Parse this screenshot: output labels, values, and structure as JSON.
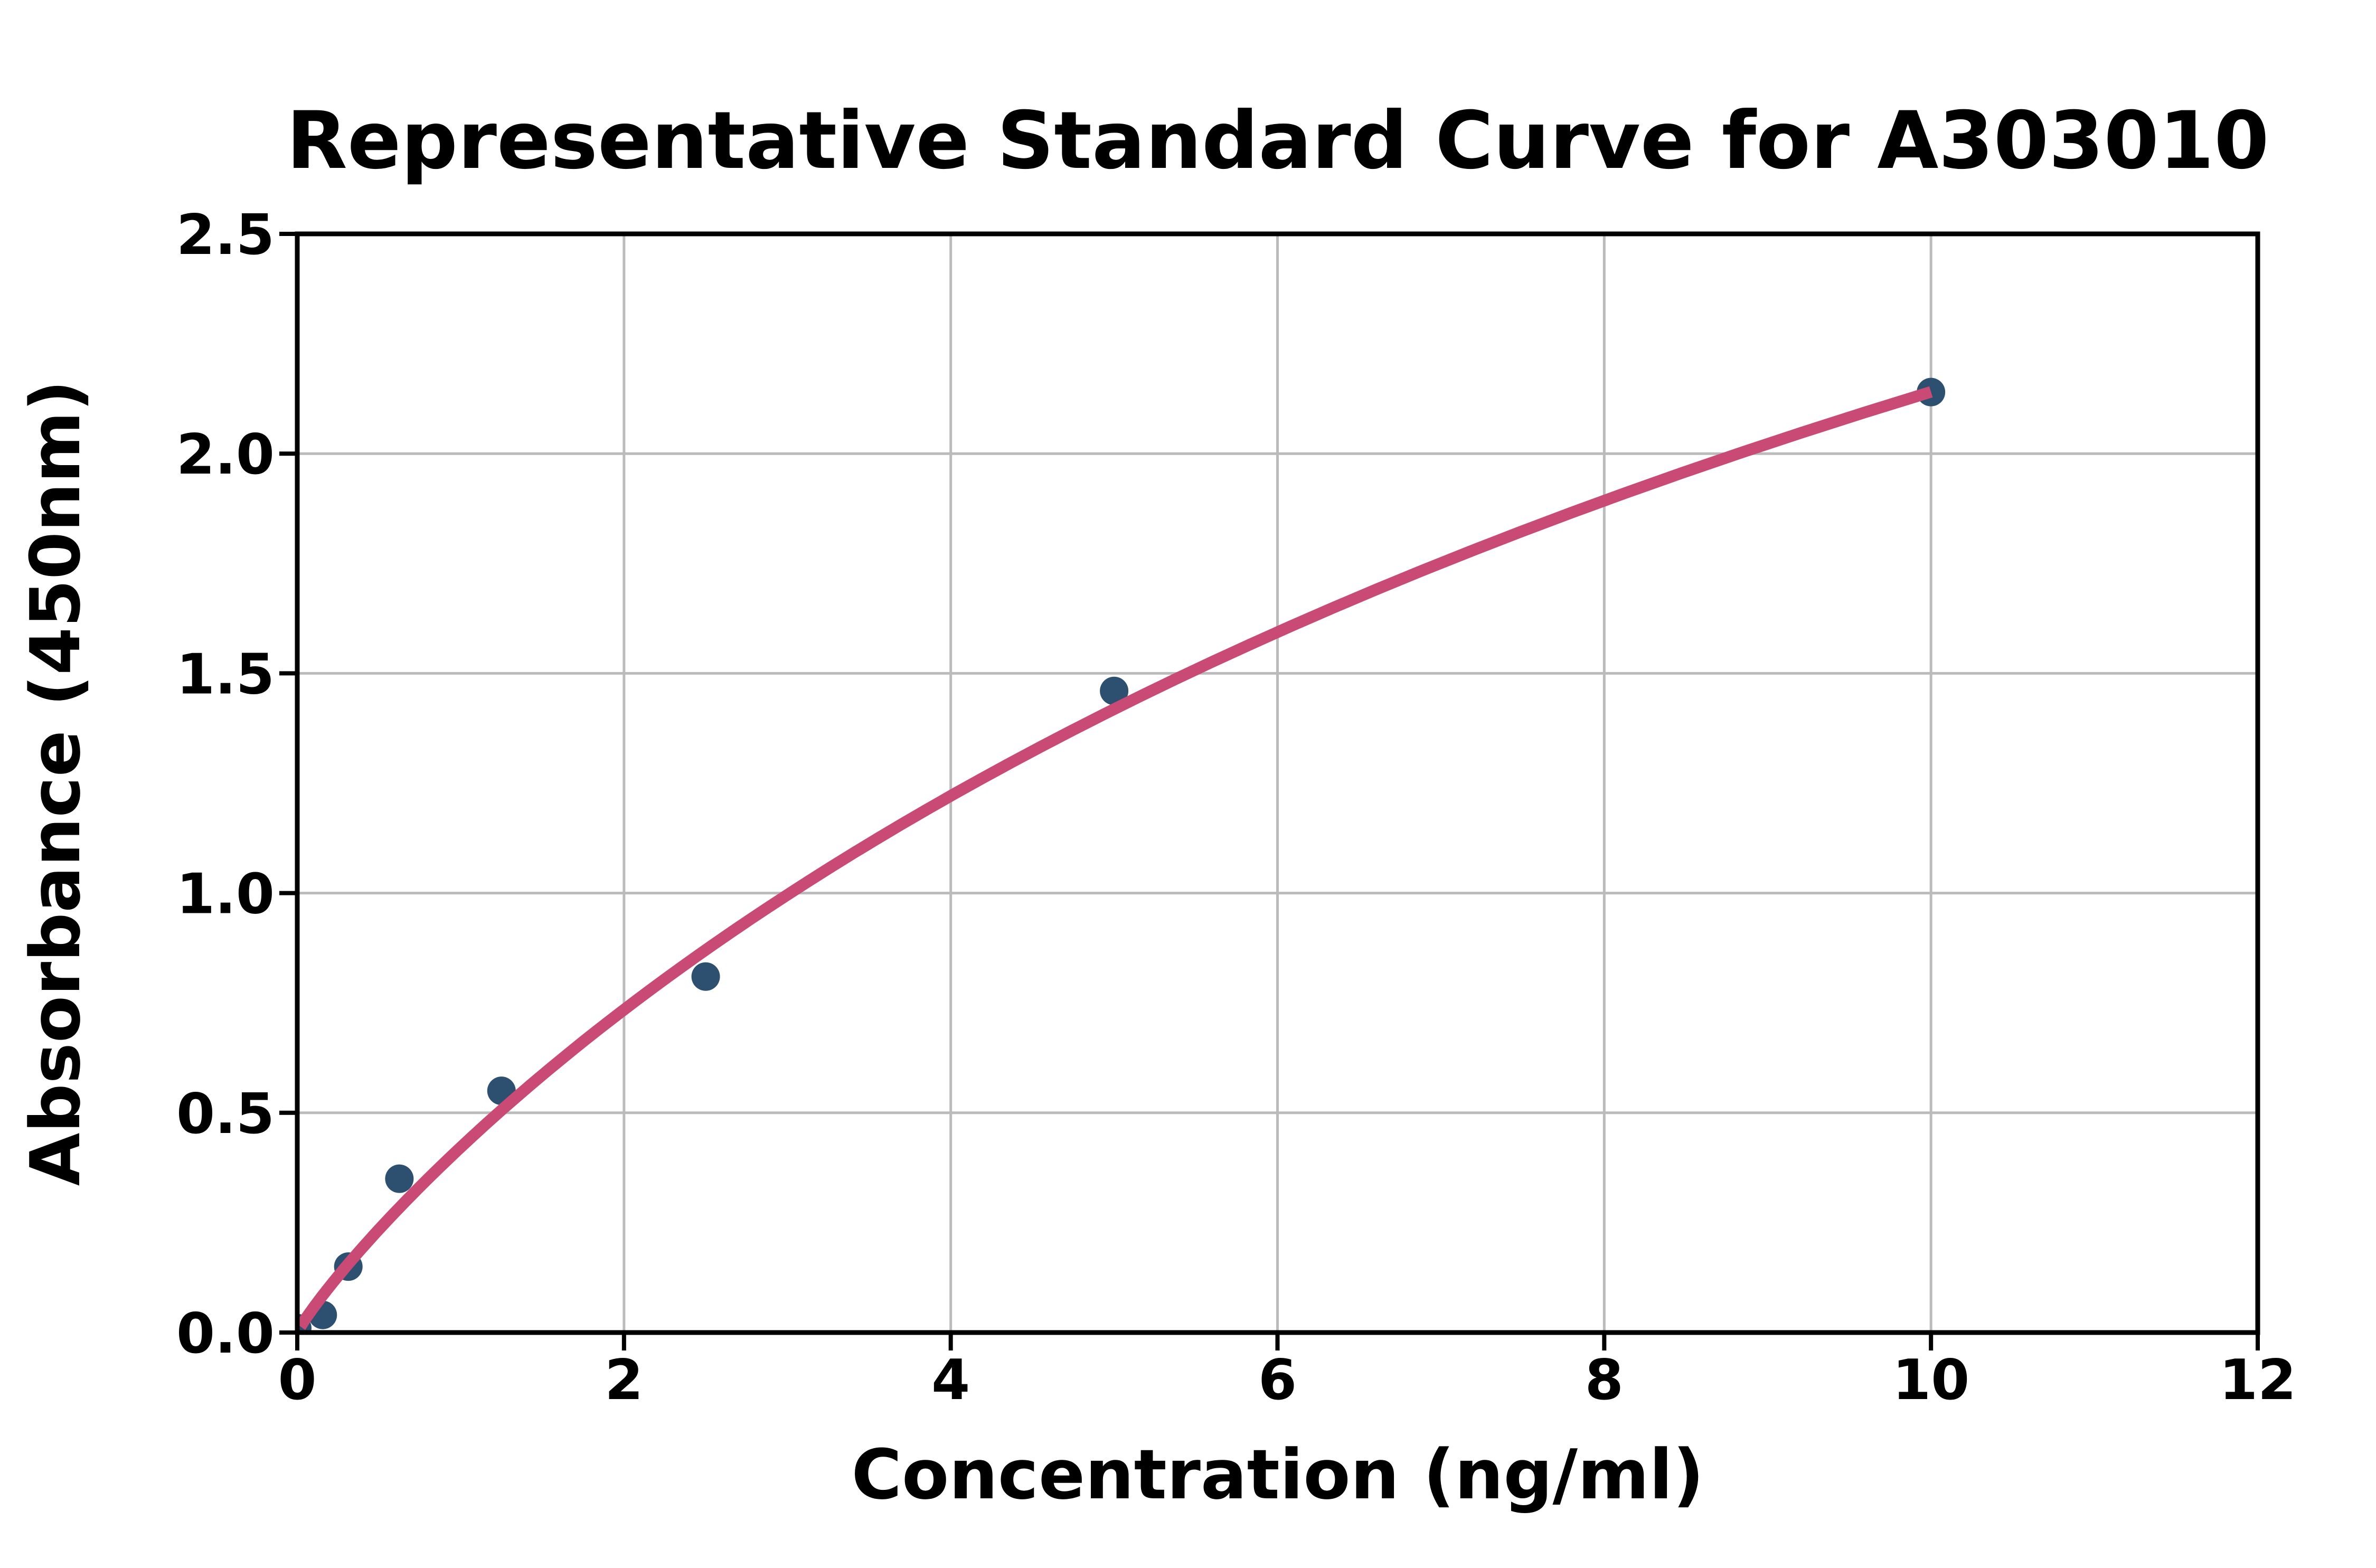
{
  "figure": {
    "background": "#ffffff"
  },
  "chart_data": {
    "type": "scatter",
    "title": "Representative Standard Curve for A303010",
    "xlabel": "Concentration (ng/ml)",
    "ylabel": "Absorbance (450nm)",
    "xlim": [
      0,
      12
    ],
    "ylim": [
      0,
      2.5
    ],
    "grid": true,
    "legend": "none",
    "x_ticks": {
      "values": [
        0,
        2,
        4,
        6,
        8,
        10,
        12
      ],
      "labels": [
        "0",
        "2",
        "4",
        "6",
        "8",
        "10",
        "12"
      ]
    },
    "y_ticks": {
      "values": [
        0,
        0.5,
        1.0,
        1.5,
        2.0,
        2.5
      ],
      "labels": [
        "0.0",
        "0.5",
        "1.0",
        "1.5",
        "2.0",
        "2.5"
      ]
    },
    "points": [
      {
        "x": 0,
        "y": 0.01
      },
      {
        "x": 0.156,
        "y": 0.04
      },
      {
        "x": 0.3125,
        "y": 0.15
      },
      {
        "x": 0.625,
        "y": 0.35
      },
      {
        "x": 1.25,
        "y": 0.55
      },
      {
        "x": 2.5,
        "y": 0.81
      },
      {
        "x": 5,
        "y": 1.46
      },
      {
        "x": 10,
        "y": 2.14
      }
    ],
    "fit_curve": {
      "model": "saturation",
      "formula": "y = Vm * x^B / (K + x^B)",
      "Vm": 5.19,
      "K": 11.317,
      "B": 0.9,
      "x_start": 0.02,
      "x_end": 10
    },
    "colors": {
      "marker": "#2E5070",
      "curve": "#C94A74",
      "grid": "#BBBBBB",
      "axis": "#000000",
      "background": "#ffffff"
    }
  }
}
